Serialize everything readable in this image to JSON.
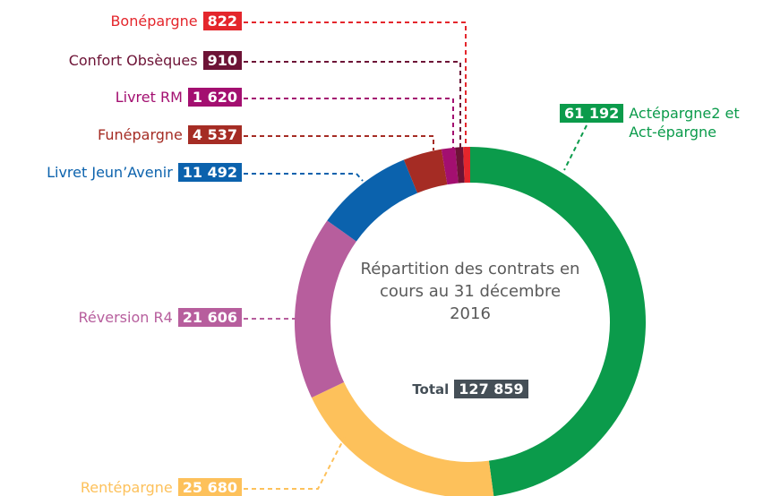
{
  "chart_data": {
    "type": "pie",
    "categories": [
      "Actépargne2 et Act-épargne",
      "Rentépargne",
      "Réversion R4",
      "Livret Jeun’Avenir",
      "Funépargne",
      "Livret RM",
      "Confort Obsèques",
      "Bonépargne"
    ],
    "values": [
      61192,
      25680,
      21606,
      11492,
      4537,
      1620,
      910,
      822
    ],
    "value_labels": [
      "61 192",
      "25 680",
      "21 606",
      "11 492",
      "4 537",
      "1 620",
      "910",
      "822"
    ],
    "colors": [
      "#0b9b4b",
      "#fdc15b",
      "#b75e9d",
      "#0b62ad",
      "#a52c24",
      "#a30f70",
      "#6d1336",
      "#e4262c"
    ],
    "center_text": "Répartition des contrats en cours au 31 décembre 2016",
    "total_title": "Total",
    "total": {
      "value": 127859,
      "label": "127 859"
    }
  }
}
